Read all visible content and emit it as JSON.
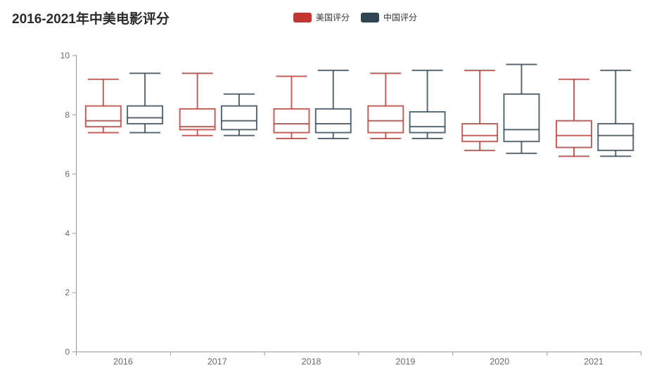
{
  "header": {
    "title": "2016-2021年中美电影评分"
  },
  "legend": {
    "items": [
      {
        "label": "美国评分",
        "color": "#c23531"
      },
      {
        "label": "中国评分",
        "color": "#2f4554"
      }
    ]
  },
  "chart_data": {
    "type": "boxplot",
    "title": "2016-2021年中美电影评分",
    "categories": [
      "2016",
      "2017",
      "2018",
      "2019",
      "2020",
      "2021"
    ],
    "series": [
      {
        "name": "美国评分",
        "color": "#c23531",
        "boxes": [
          {
            "min": 7.4,
            "q1": 7.6,
            "median": 7.8,
            "q3": 8.3,
            "max": 9.2
          },
          {
            "min": 7.3,
            "q1": 7.5,
            "median": 7.6,
            "q3": 8.2,
            "max": 9.4
          },
          {
            "min": 7.2,
            "q1": 7.4,
            "median": 7.7,
            "q3": 8.2,
            "max": 9.3
          },
          {
            "min": 7.2,
            "q1": 7.4,
            "median": 7.8,
            "q3": 8.3,
            "max": 9.4
          },
          {
            "min": 6.8,
            "q1": 7.1,
            "median": 7.3,
            "q3": 7.7,
            "max": 9.5
          },
          {
            "min": 6.6,
            "q1": 6.9,
            "median": 7.3,
            "q3": 7.8,
            "max": 9.2
          }
        ]
      },
      {
        "name": "中国评分",
        "color": "#2f4554",
        "boxes": [
          {
            "min": 7.4,
            "q1": 7.7,
            "median": 7.9,
            "q3": 8.3,
            "max": 9.4
          },
          {
            "min": 7.3,
            "q1": 7.5,
            "median": 7.8,
            "q3": 8.3,
            "max": 8.7
          },
          {
            "min": 7.2,
            "q1": 7.4,
            "median": 7.7,
            "q3": 8.2,
            "max": 9.5
          },
          {
            "min": 7.2,
            "q1": 7.4,
            "median": 7.6,
            "q3": 8.1,
            "max": 9.5
          },
          {
            "min": 6.7,
            "q1": 7.1,
            "median": 7.5,
            "q3": 8.7,
            "max": 9.7
          },
          {
            "min": 6.6,
            "q1": 6.8,
            "median": 7.3,
            "q3": 7.7,
            "max": 9.5
          }
        ]
      }
    ],
    "y_axis": {
      "min": 0,
      "max": 10,
      "ticks": [
        0,
        2,
        4,
        6,
        8,
        10
      ]
    },
    "x_axis_labels": [
      "2016",
      "2017",
      "2018",
      "2019",
      "2020",
      "2021"
    ],
    "legend_position": "top-center",
    "grid": false,
    "axis_line_color": "#999999",
    "axis_label_color": "#6b6b6b"
  }
}
